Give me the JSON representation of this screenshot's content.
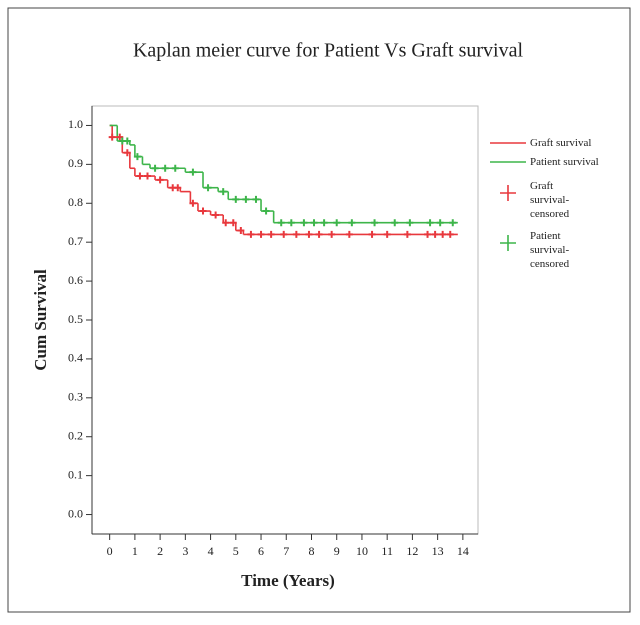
{
  "chart_data": {
    "type": "kaplan-meier",
    "title": "Kaplan meier curve for Patient Vs Graft survival",
    "x_label": "Time (Years)",
    "y_label": "Cum Survival",
    "xlim": [
      -0.7,
      14.6
    ],
    "ylim": [
      -0.05,
      1.05
    ],
    "xticks": [
      0,
      1,
      2,
      3,
      4,
      5,
      6,
      7,
      8,
      9,
      10,
      11,
      12,
      13,
      14
    ],
    "yticks": [
      {
        "value": 0,
        "label": "0.0"
      },
      0.1,
      0.2,
      0.3,
      0.4,
      0.5,
      0.6,
      0.7,
      0.8,
      0.9,
      {
        "value": 1,
        "label": "1.0"
      }
    ],
    "series": [
      {
        "name": "Graft survival",
        "color": "#e8383d",
        "style": "step",
        "x": [
          0,
          0.1,
          0.5,
          0.8,
          1.0,
          1.8,
          2.3,
          2.8,
          3.2,
          3.5,
          4.0,
          4.5,
          5.0,
          5.3,
          13.8
        ],
        "values": [
          1.0,
          0.97,
          0.93,
          0.89,
          0.87,
          0.86,
          0.84,
          0.83,
          0.8,
          0.78,
          0.77,
          0.75,
          0.73,
          0.72,
          0.72
        ]
      },
      {
        "name": "Patient survival",
        "color": "#3db54a",
        "style": "step",
        "x": [
          0,
          0.3,
          0.8,
          1.0,
          1.3,
          1.6,
          3.0,
          3.7,
          4.3,
          4.7,
          6.0,
          6.5,
          13.8
        ],
        "values": [
          1.0,
          0.96,
          0.95,
          0.92,
          0.9,
          0.89,
          0.88,
          0.84,
          0.83,
          0.81,
          0.78,
          0.75,
          0.75
        ]
      },
      {
        "name": "Graft survival-censored",
        "color": "#e8383d",
        "style": "censored",
        "x": [
          0.1,
          0.4,
          0.7,
          1.2,
          1.5,
          2.0,
          2.5,
          2.7,
          3.3,
          3.7,
          4.2,
          4.6,
          4.9,
          5.2,
          5.6,
          6.0,
          6.4,
          6.9,
          7.4,
          7.9,
          8.3,
          8.8,
          9.5,
          10.4,
          11.0,
          11.8,
          12.6,
          12.9,
          13.2,
          13.5
        ],
        "values": [
          0.97,
          0.97,
          0.93,
          0.87,
          0.87,
          0.86,
          0.84,
          0.84,
          0.8,
          0.78,
          0.77,
          0.75,
          0.75,
          0.73,
          0.72,
          0.72,
          0.72,
          0.72,
          0.72,
          0.72,
          0.72,
          0.72,
          0.72,
          0.72,
          0.72,
          0.72,
          0.72,
          0.72,
          0.72,
          0.72
        ]
      },
      {
        "name": "Patient survival-censored",
        "color": "#3db54a",
        "style": "censored",
        "x": [
          0.5,
          0.7,
          1.1,
          1.8,
          2.2,
          2.6,
          3.3,
          3.9,
          4.5,
          5.0,
          5.4,
          5.8,
          6.2,
          6.8,
          7.2,
          7.7,
          8.1,
          8.5,
          9.0,
          9.6,
          10.5,
          11.3,
          11.9,
          12.7,
          13.1,
          13.6
        ],
        "values": [
          0.96,
          0.96,
          0.92,
          0.89,
          0.89,
          0.89,
          0.88,
          0.84,
          0.83,
          0.81,
          0.81,
          0.81,
          0.78,
          0.75,
          0.75,
          0.75,
          0.75,
          0.75,
          0.75,
          0.75,
          0.75,
          0.75,
          0.75,
          0.75,
          0.75,
          0.75
        ]
      }
    ]
  }
}
